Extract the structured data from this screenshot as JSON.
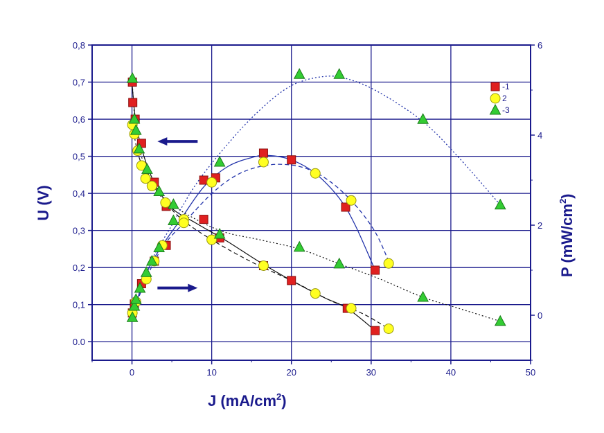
{
  "chart_data": {
    "type": "scatter",
    "xlabel": "J (mA/cm",
    "xlabel_sup": "2",
    "xlabel_close": ")",
    "ylabel_left": "U (V)",
    "ylabel_right": "P (mW/cm",
    "ylabel_right_sup": "2",
    "ylabel_right_close": ")",
    "xlim": [
      -5,
      50
    ],
    "ylim_left": [
      -0.05,
      0.8
    ],
    "ylim_right": [
      -1,
      6
    ],
    "x_ticks": [
      0,
      10,
      20,
      30,
      40,
      50
    ],
    "y_left_ticks": [
      "0.0",
      "0,1",
      "0,2",
      "0,3",
      "0,4",
      "0,5",
      "0,6",
      "0,7",
      "0,8"
    ],
    "y_left_tick_values": [
      0.0,
      0.1,
      0.2,
      0.3,
      0.4,
      0.5,
      0.6,
      0.7,
      0.8
    ],
    "y_right_ticks": [
      "0",
      "2",
      "4",
      "6"
    ],
    "y_right_tick_values": [
      0,
      2,
      4,
      6
    ],
    "grid": true,
    "legend_position": "top-right",
    "annotations": [
      {
        "type": "arrow-left",
        "meaning": "U curves use left axis",
        "x": 4.5,
        "y": 0.54
      },
      {
        "type": "arrow-right",
        "meaning": "P curves use right axis",
        "x": 4.5,
        "y": 0.145
      }
    ],
    "series": [
      {
        "name": "1",
        "marker": "square",
        "color": "#e02020",
        "uj": [
          [
            0.05,
            0.7
          ],
          [
            0.1,
            0.645
          ],
          [
            0.4,
            0.6
          ],
          [
            1.2,
            0.535
          ],
          [
            2.8,
            0.43
          ],
          [
            4.3,
            0.365
          ],
          [
            9,
            0.33
          ],
          [
            11,
            0.28
          ],
          [
            16.5,
            0.205
          ],
          [
            20,
            0.165
          ],
          [
            27,
            0.09
          ],
          [
            30.5,
            0.03
          ]
        ],
        "pj": [
          [
            0.05,
            0.05
          ],
          [
            0.3,
            0.25
          ],
          [
            1.2,
            0.7
          ],
          [
            2.8,
            1.2
          ],
          [
            4.3,
            1.55
          ],
          [
            9,
            3.0
          ],
          [
            10.5,
            3.05
          ],
          [
            16.5,
            3.6
          ],
          [
            20,
            3.45
          ],
          [
            26.8,
            2.4
          ],
          [
            30.5,
            1.0
          ]
        ],
        "fit_uj": [
          [
            0,
            0.7
          ],
          [
            0.5,
            0.59
          ],
          [
            1.5,
            0.5
          ],
          [
            3,
            0.42
          ],
          [
            5,
            0.36
          ],
          [
            8,
            0.32
          ],
          [
            12,
            0.27
          ],
          [
            16,
            0.215
          ],
          [
            20,
            0.165
          ],
          [
            24,
            0.12
          ],
          [
            27,
            0.09
          ],
          [
            30.5,
            0.03
          ]
        ],
        "fit_pj": [
          [
            0,
            0
          ],
          [
            2,
            1.0
          ],
          [
            4,
            1.6
          ],
          [
            6,
            2.1
          ],
          [
            9,
            2.85
          ],
          [
            12,
            3.3
          ],
          [
            15,
            3.5
          ],
          [
            17,
            3.55
          ],
          [
            20,
            3.45
          ],
          [
            23,
            3.15
          ],
          [
            26,
            2.6
          ],
          [
            28,
            2.0
          ],
          [
            30.5,
            1.0
          ]
        ],
        "fit_style": "solid"
      },
      {
        "name": "2",
        "marker": "circle",
        "color": "#ffff22",
        "uj": [
          [
            0.05,
            0.585
          ],
          [
            0.3,
            0.56
          ],
          [
            0.7,
            0.515
          ],
          [
            1.2,
            0.475
          ],
          [
            1.7,
            0.44
          ],
          [
            2.5,
            0.42
          ],
          [
            4.2,
            0.375
          ],
          [
            6.5,
            0.33
          ],
          [
            10,
            0.275
          ],
          [
            16.5,
            0.205
          ],
          [
            23,
            0.13
          ],
          [
            27.5,
            0.09
          ],
          [
            32.2,
            0.035
          ]
        ],
        "pj": [
          [
            0.05,
            0.05
          ],
          [
            0.5,
            0.3
          ],
          [
            1.8,
            0.8
          ],
          [
            2.8,
            1.2
          ],
          [
            3.8,
            1.55
          ],
          [
            6.5,
            2.05
          ],
          [
            10,
            2.95
          ],
          [
            16.5,
            3.4
          ],
          [
            23,
            3.15
          ],
          [
            27.5,
            2.55
          ],
          [
            32.2,
            1.15
          ]
        ],
        "fit_uj": [
          [
            0,
            0.59
          ],
          [
            1,
            0.49
          ],
          [
            3,
            0.41
          ],
          [
            6,
            0.335
          ],
          [
            10,
            0.275
          ],
          [
            15,
            0.215
          ],
          [
            20,
            0.165
          ],
          [
            25,
            0.11
          ],
          [
            29,
            0.075
          ],
          [
            32.2,
            0.035
          ]
        ],
        "fit_pj": [
          [
            0,
            0
          ],
          [
            2,
            0.9
          ],
          [
            4,
            1.55
          ],
          [
            6.5,
            2.05
          ],
          [
            10,
            2.7
          ],
          [
            13,
            3.1
          ],
          [
            16,
            3.3
          ],
          [
            19,
            3.35
          ],
          [
            22,
            3.25
          ],
          [
            25,
            2.95
          ],
          [
            28,
            2.45
          ],
          [
            30.5,
            1.85
          ],
          [
            32.2,
            1.2
          ]
        ],
        "fit_style": "dashed"
      },
      {
        "name": "3",
        "marker": "triangle",
        "color": "#33cc33",
        "uj": [
          [
            0.05,
            0.71
          ],
          [
            0.3,
            0.6
          ],
          [
            0.5,
            0.57
          ],
          [
            0.9,
            0.52
          ],
          [
            1.9,
            0.465
          ],
          [
            3.4,
            0.405
          ],
          [
            5.2,
            0.37
          ],
          [
            11,
            0.29
          ],
          [
            21,
            0.255
          ],
          [
            26,
            0.21
          ],
          [
            36.5,
            0.12
          ],
          [
            46.2,
            0.055
          ]
        ],
        "pj": [
          [
            0.05,
            -0.05
          ],
          [
            0.3,
            0.2
          ],
          [
            0.5,
            0.35
          ],
          [
            1,
            0.6
          ],
          [
            1.8,
            0.95
          ],
          [
            2.5,
            1.2
          ],
          [
            3.4,
            1.5
          ],
          [
            5.2,
            2.1
          ],
          [
            11,
            3.4
          ],
          [
            21,
            5.35
          ],
          [
            26,
            5.35
          ],
          [
            36.5,
            4.35
          ],
          [
            46.2,
            2.45
          ]
        ],
        "fit_uj": [
          [
            0,
            0.71
          ],
          [
            0.5,
            0.57
          ],
          [
            1.5,
            0.48
          ],
          [
            3.5,
            0.4
          ],
          [
            6,
            0.355
          ],
          [
            11,
            0.3
          ],
          [
            16,
            0.275
          ],
          [
            21,
            0.25
          ],
          [
            26,
            0.21
          ],
          [
            31,
            0.17
          ],
          [
            36.5,
            0.12
          ],
          [
            41,
            0.09
          ],
          [
            46.2,
            0.055
          ]
        ],
        "fit_pj": [
          [
            0,
            -0.05
          ],
          [
            2,
            1.05
          ],
          [
            5,
            2.0
          ],
          [
            8,
            2.9
          ],
          [
            12,
            3.8
          ],
          [
            16,
            4.55
          ],
          [
            20,
            5.1
          ],
          [
            24,
            5.3
          ],
          [
            27,
            5.25
          ],
          [
            31,
            4.95
          ],
          [
            36.5,
            4.3
          ],
          [
            41,
            3.5
          ],
          [
            46.2,
            2.45
          ]
        ],
        "fit_style": "dotted"
      }
    ],
    "legend": [
      "-1",
      "2",
      "-3"
    ]
  }
}
